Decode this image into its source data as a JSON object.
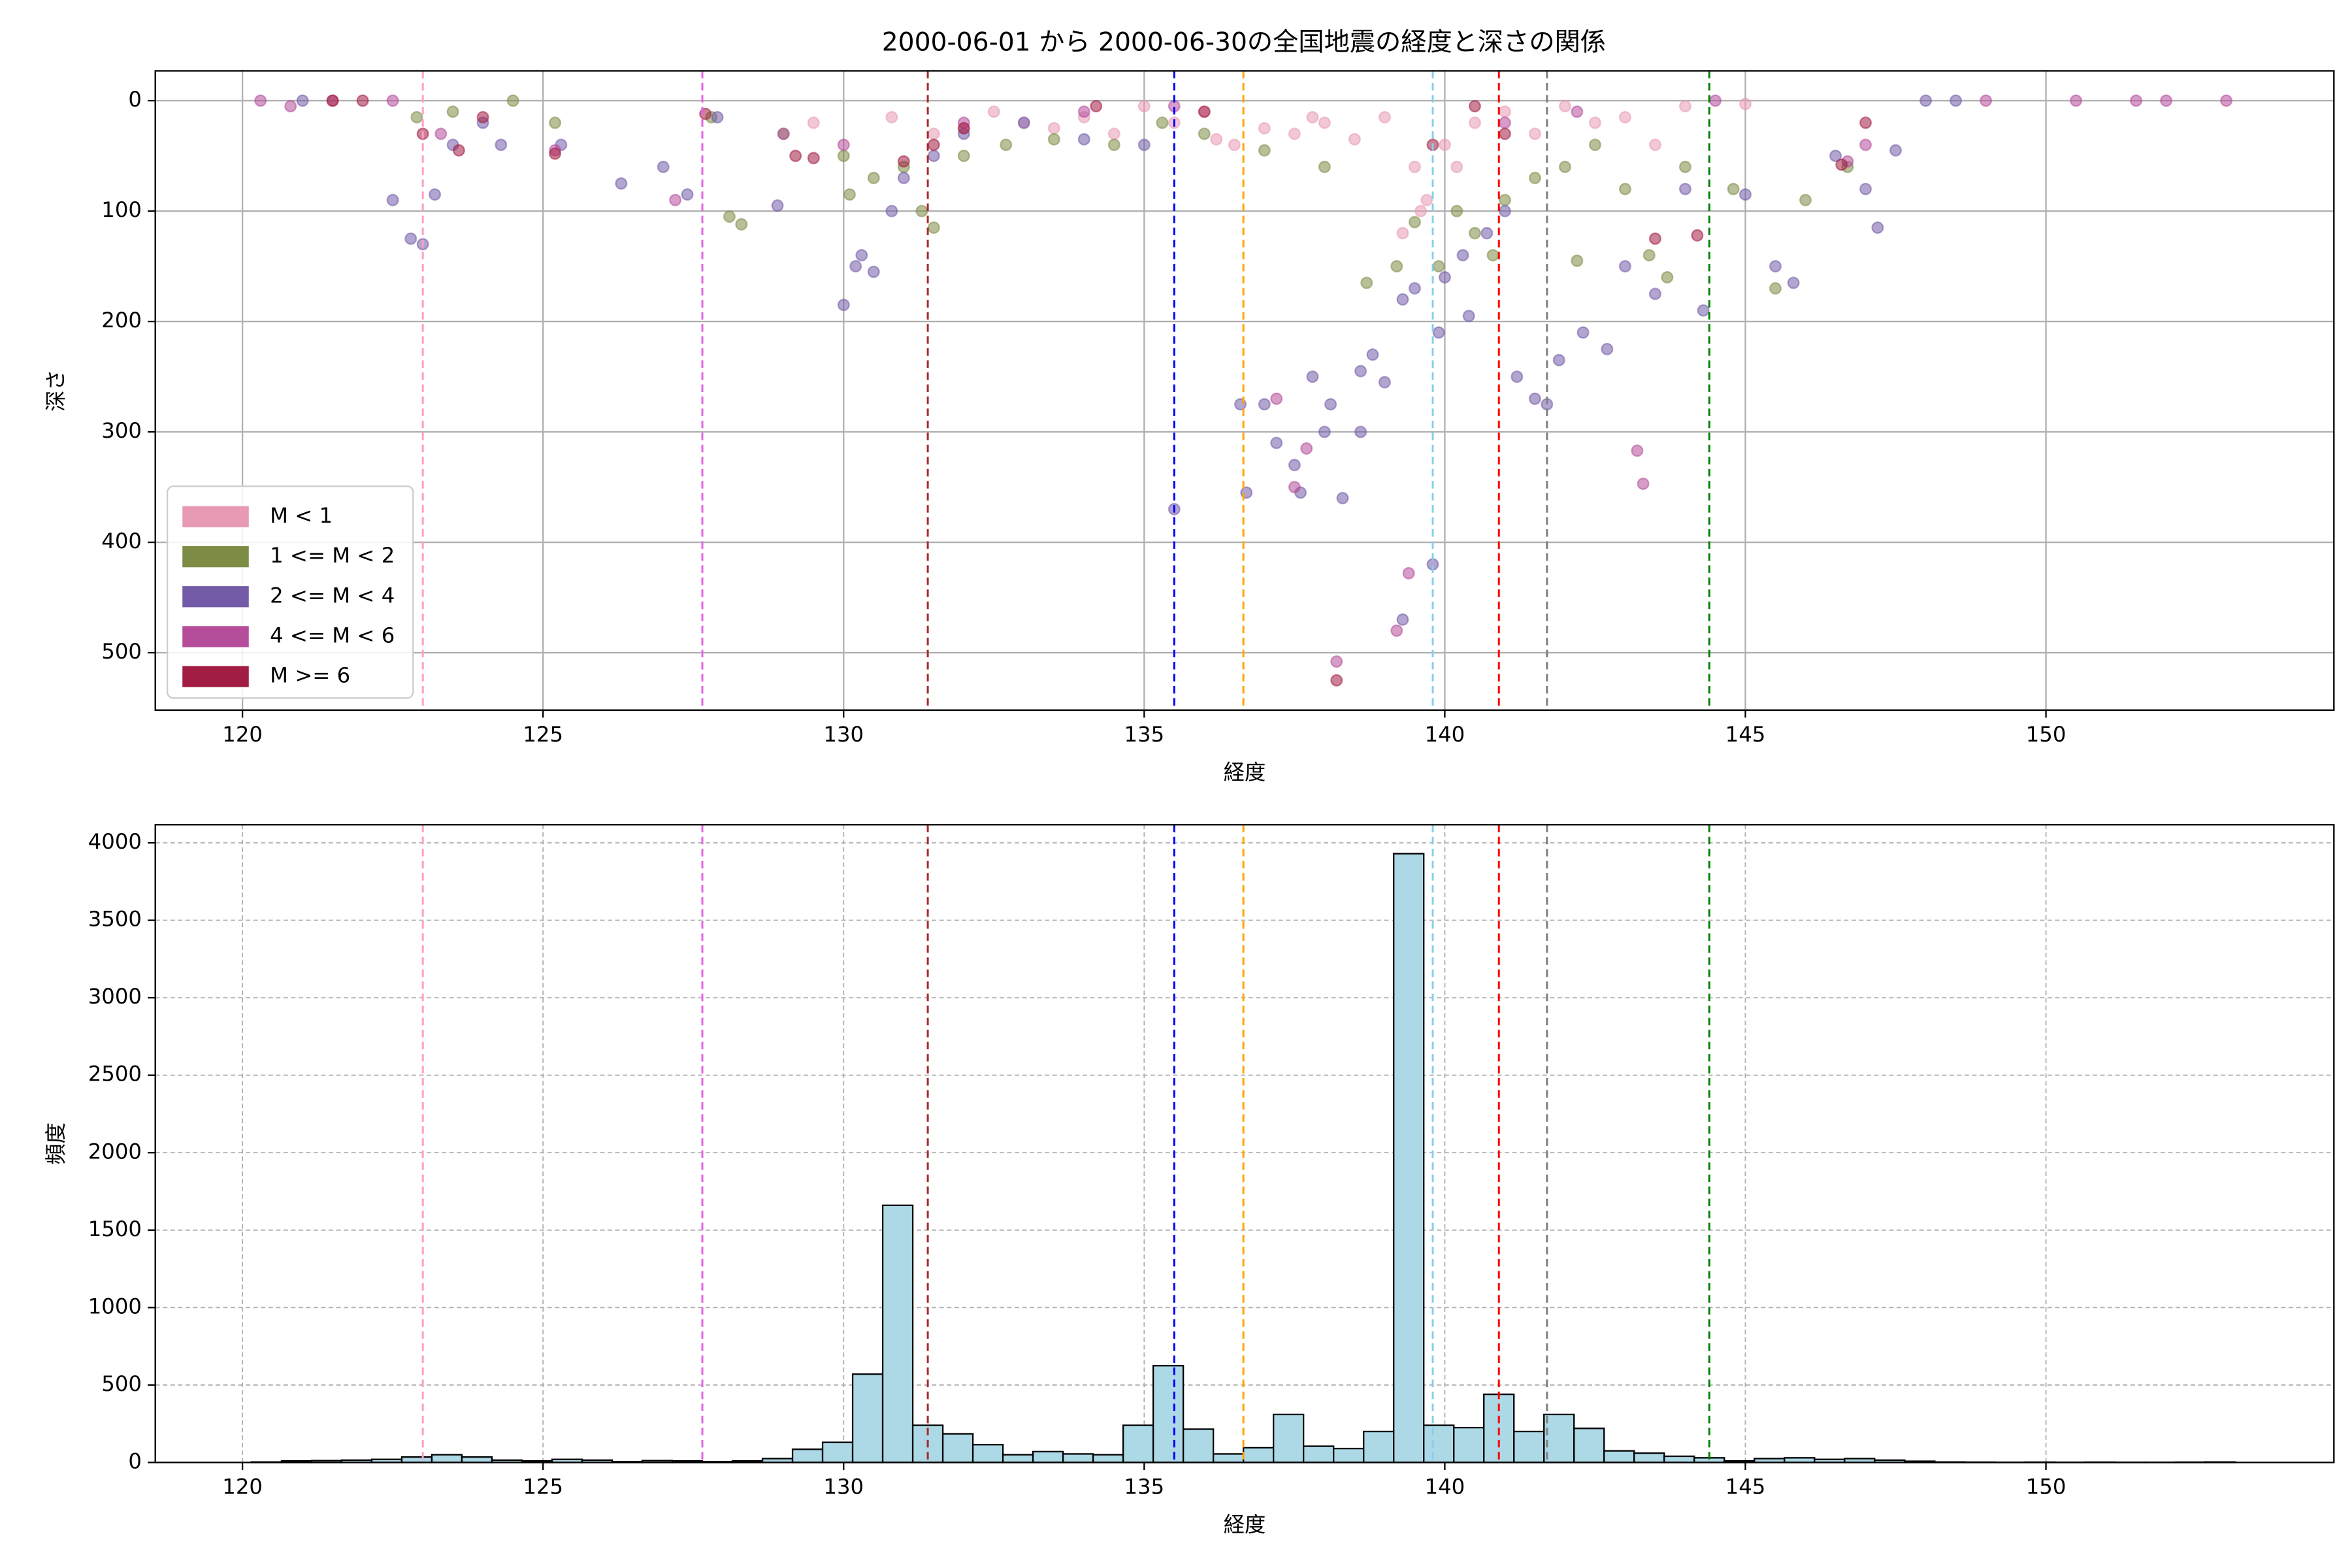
{
  "chart_data": [
    {
      "type": "scatter",
      "title": "2000-06-01 から 2000-06-30の全国地震の経度と深さの関係",
      "xlabel": "経度",
      "ylabel": "深さ",
      "xlim": [
        118.55,
        154.79
      ],
      "ylim": [
        -27,
        552
      ],
      "y_inverted": true,
      "xticks": [
        120,
        125,
        130,
        135,
        140,
        145,
        150
      ],
      "yticks": [
        0,
        100,
        200,
        300,
        400,
        500
      ],
      "grid": true,
      "grid_style": "solid",
      "legend": "lower left",
      "alpha": 0.55,
      "reference_lines": [
        {
          "x": 123.0,
          "color": "#ff9ec8"
        },
        {
          "x": 127.65,
          "color": "#e066e0"
        },
        {
          "x": 131.4,
          "color": "#a52a2a"
        },
        {
          "x": 135.5,
          "color": "#0000ff"
        },
        {
          "x": 136.65,
          "color": "#ffa500"
        },
        {
          "x": 139.8,
          "color": "#87ceeb"
        },
        {
          "x": 140.9,
          "color": "#ff0000"
        },
        {
          "x": 141.7,
          "color": "#808080"
        },
        {
          "x": 144.4,
          "color": "#008000"
        }
      ],
      "series": [
        {
          "name": "M < 1",
          "color": "#e899b4",
          "x": [
            132.5,
            133,
            134,
            134.5,
            135,
            135.5,
            136,
            136.5,
            137,
            137.5,
            138,
            138.5,
            139,
            139.5,
            139.7,
            140,
            140.5,
            141,
            141.5,
            142,
            142.5,
            143,
            143.5,
            132,
            131.5,
            130.8,
            129.5,
            144,
            145,
            139.3,
            139.6,
            136.2,
            133.5,
            137.8,
            140.2
          ],
          "y": [
            10,
            20,
            15,
            30,
            5,
            20,
            10,
            40,
            25,
            30,
            20,
            35,
            15,
            60,
            90,
            40,
            20,
            10,
            30,
            5,
            20,
            15,
            40,
            25,
            30,
            15,
            20,
            5,
            3,
            120,
            100,
            35,
            25,
            15,
            60
          ]
        },
        {
          "name": "1 <= M < 2",
          "color": "#7d8c45",
          "x": [
            122.9,
            124.5,
            125.2,
            127.8,
            128.1,
            128.3,
            129,
            130,
            130.5,
            131,
            131.3,
            131.5,
            132,
            132.7,
            133.5,
            134.5,
            135.3,
            136,
            137,
            138,
            138.7,
            139.2,
            139.5,
            139.9,
            140.2,
            140.5,
            141,
            141.5,
            142,
            142.2,
            142.5,
            143,
            143.4,
            143.7,
            144,
            144.8,
            145.5,
            146,
            146.7,
            123.5,
            130.1,
            140.8
          ],
          "y": [
            15,
            0,
            20,
            15,
            105,
            112,
            30,
            50,
            70,
            60,
            100,
            115,
            50,
            40,
            35,
            40,
            20,
            30,
            45,
            60,
            165,
            150,
            110,
            150,
            100,
            120,
            90,
            70,
            60,
            145,
            40,
            80,
            140,
            160,
            60,
            80,
            170,
            90,
            60,
            10,
            85,
            140
          ]
        },
        {
          "name": "2 <= M < 4",
          "color": "#735ba8",
          "x": [
            121,
            122.5,
            122.8,
            123,
            123.2,
            123.5,
            124,
            124.3,
            125.3,
            126.3,
            127,
            127.4,
            127.9,
            128.9,
            130,
            130.2,
            130.3,
            130.5,
            130.8,
            131,
            131.5,
            132,
            133,
            134,
            135,
            135.5,
            136.6,
            136.7,
            137,
            137.2,
            137.5,
            137.6,
            137.8,
            138,
            138.1,
            138.3,
            138.6,
            138.8,
            139,
            139.3,
            139.5,
            139.8,
            140,
            140.3,
            140.7,
            141,
            141.2,
            141.5,
            141.7,
            141.9,
            142.3,
            142.7,
            143,
            143.5,
            144,
            144.3,
            145,
            145.5,
            145.8,
            146.5,
            147,
            147.2,
            147.5,
            148,
            148.5,
            138.6,
            139.3,
            139.9,
            140.4
          ],
          "y": [
            0,
            90,
            125,
            130,
            85,
            40,
            20,
            40,
            40,
            75,
            60,
            85,
            15,
            95,
            185,
            150,
            140,
            155,
            100,
            70,
            50,
            30,
            20,
            35,
            40,
            370,
            275,
            355,
            275,
            310,
            330,
            355,
            250,
            300,
            275,
            360,
            245,
            230,
            255,
            470,
            170,
            420,
            160,
            140,
            120,
            100,
            250,
            270,
            275,
            235,
            210,
            225,
            150,
            175,
            80,
            190,
            85,
            150,
            165,
            50,
            80,
            115,
            45,
            0,
            0,
            300,
            180,
            210,
            195
          ]
        },
        {
          "name": "4 <= M < 6",
          "color": "#b54d9b",
          "x": [
            120.3,
            120.8,
            121.5,
            122.5,
            123.3,
            125.2,
            127.2,
            129,
            130,
            132,
            134,
            137.2,
            137.5,
            137.7,
            138.2,
            139.2,
            139.4,
            141,
            143.2,
            143.3,
            144.5,
            146.7,
            147,
            149,
            150.5,
            151.5,
            152,
            153,
            142.2,
            135.5
          ],
          "y": [
            0,
            5,
            0,
            0,
            30,
            45,
            90,
            30,
            40,
            20,
            10,
            270,
            350,
            315,
            508,
            480,
            428,
            20,
            317,
            347,
            0,
            55,
            40,
            0,
            0,
            0,
            0,
            0,
            10,
            5
          ]
        },
        {
          "name": "M >= 6",
          "color": "#a21d43",
          "x": [
            121.5,
            122,
            123,
            123.6,
            125.2,
            127.7,
            129.2,
            129.5,
            131,
            131.5,
            132,
            138.2,
            139.8,
            140.5,
            141,
            143.5,
            144.2,
            146.6,
            147,
            134.2,
            136,
            124
          ],
          "y": [
            0,
            0,
            30,
            45,
            48,
            12,
            50,
            52,
            55,
            40,
            25,
            525,
            40,
            5,
            30,
            125,
            122,
            58,
            20,
            5,
            10,
            15
          ]
        }
      ]
    },
    {
      "type": "histogram",
      "xlabel": "経度",
      "ylabel": "頻度",
      "xlim": [
        118.55,
        154.79
      ],
      "ylim": [
        0,
        4117
      ],
      "xticks": [
        120,
        125,
        130,
        135,
        140,
        145,
        150
      ],
      "yticks": [
        0,
        500,
        1000,
        1500,
        2000,
        2500,
        3000,
        3500,
        4000
      ],
      "grid": true,
      "grid_style": "dashed",
      "color": "#add8e6",
      "reference_lines": [
        {
          "x": 123.0,
          "color": "#ff9ec8"
        },
        {
          "x": 127.65,
          "color": "#e066e0"
        },
        {
          "x": 131.4,
          "color": "#a52a2a"
        },
        {
          "x": 135.5,
          "color": "#0000ff"
        },
        {
          "x": 136.65,
          "color": "#ffa500"
        },
        {
          "x": 139.8,
          "color": "#87ceeb"
        },
        {
          "x": 140.9,
          "color": "#ff0000"
        },
        {
          "x": 141.7,
          "color": "#808080"
        },
        {
          "x": 144.4,
          "color": "#008000"
        }
      ],
      "bins": [
        120.15,
        120.65,
        121.15,
        121.65,
        122.15,
        122.65,
        123.15,
        123.65,
        124.15,
        124.65,
        125.15,
        125.65,
        126.15,
        126.65,
        127.15,
        127.65,
        128.15,
        128.65,
        129.15,
        129.65,
        130.15,
        130.65,
        131.15,
        131.65,
        132.15,
        132.65,
        133.15,
        133.65,
        134.15,
        134.65,
        135.15,
        135.65,
        136.15,
        136.65,
        137.15,
        137.65,
        138.15,
        138.65,
        139.15,
        139.65,
        140.15,
        140.65,
        141.15,
        141.65,
        142.15,
        142.65,
        143.15,
        143.65,
        144.15,
        144.65,
        145.15,
        145.65,
        146.15,
        146.65,
        147.15,
        147.65,
        148.15,
        148.65,
        149.15,
        149.65,
        150.15,
        150.65,
        151.15,
        151.65,
        152.15,
        152.65,
        153.15
      ],
      "values": [
        3,
        10,
        12,
        15,
        20,
        35,
        50,
        35,
        15,
        10,
        20,
        15,
        5,
        12,
        10,
        5,
        10,
        25,
        85,
        130,
        570,
        1660,
        240,
        185,
        115,
        50,
        70,
        55,
        50,
        240,
        625,
        215,
        55,
        95,
        310,
        105,
        90,
        200,
        3930,
        240,
        225,
        440,
        200,
        310,
        220,
        75,
        60,
        40,
        30,
        10,
        25,
        30,
        20,
        25,
        15,
        8,
        3,
        2,
        1,
        2,
        1,
        2,
        1,
        1,
        2,
        3
      ]
    }
  ]
}
